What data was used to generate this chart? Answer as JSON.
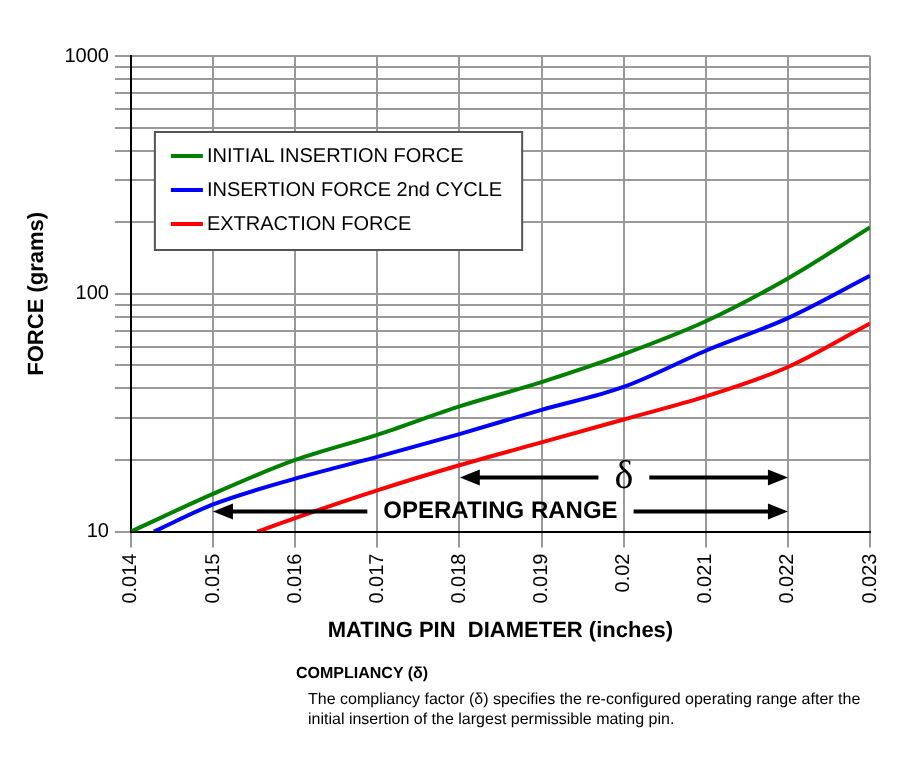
{
  "chart_data": {
    "type": "line",
    "xlabel": "MATING PIN  DIAMETER (inches)",
    "ylabel": "FORCE (grams)",
    "log": "y",
    "grid": true,
    "legend": "top left",
    "marker": "none",
    "line_style": "solid",
    "xlim": [
      0.014,
      0.023
    ],
    "xticks": [
      0.014,
      0.015,
      0.016,
      0.017,
      0.018,
      0.019,
      0.02,
      0.021,
      0.022,
      0.023
    ],
    "ylim": [
      10,
      1000
    ],
    "yticks": [
      10,
      {
        "value": 20,
        "label": null
      },
      {
        "value": 30,
        "label": null
      },
      {
        "value": 40,
        "label": null
      },
      {
        "value": 50,
        "label": null
      },
      {
        "value": 60,
        "label": null
      },
      {
        "value": 70,
        "label": null
      },
      {
        "value": 80,
        "label": null
      },
      {
        "value": 90,
        "label": null
      },
      100,
      {
        "value": 200,
        "label": null
      },
      {
        "value": 300,
        "label": null
      },
      {
        "value": 400,
        "label": null
      },
      {
        "value": 500,
        "label": null
      },
      {
        "value": 600,
        "label": null
      },
      {
        "value": 700,
        "label": null
      },
      {
        "value": 800,
        "label": null
      },
      {
        "value": 900,
        "label": null
      },
      1000
    ],
    "series": [
      {
        "name": "INITIAL INSERTION FORCE",
        "color": "#008000",
        "x": [
          0.014,
          0.015,
          0.016,
          0.017,
          0.018,
          0.019,
          0.02,
          0.021,
          0.022,
          0.023
        ],
        "values": [
          10,
          14.4,
          20,
          25.5,
          33.6,
          42.5,
          55.7,
          76.6,
          116,
          190
        ]
      },
      {
        "name": "INSERTION FORCE 2nd CYCLE",
        "color": "#0000ff",
        "x": [
          0.01428,
          0.015,
          0.016,
          0.017,
          0.018,
          0.019,
          0.02,
          0.021,
          0.022,
          0.023
        ],
        "values": [
          10,
          13,
          16.7,
          20.6,
          25.7,
          32.5,
          40.6,
          57.6,
          79,
          119
        ]
      },
      {
        "name": "EXTRACTION FORCE",
        "color": "#ff0000",
        "x": [
          0.01554,
          0.016,
          0.017,
          0.018,
          0.019,
          0.02,
          0.021,
          0.022,
          0.023
        ],
        "values": [
          10,
          11.4,
          14.9,
          19,
          23.7,
          29.6,
          37,
          49.2,
          75
        ]
      }
    ],
    "annotations": [
      "δ",
      "OPERATING RANGE",
      "COMPLIANCY (δ)",
      "The compliancy factor (δ) specifies the re-configured operating range after the initial insertion of the largest permissible mating pin."
    ]
  }
}
